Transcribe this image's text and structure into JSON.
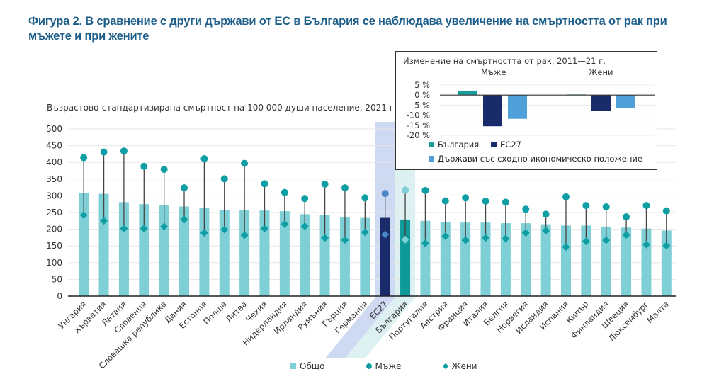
{
  "title": "Фигура 2. В сравнение с други държави от ЕС в България се наблюдава увеличение на смъртността от рак при мъжете и при жените",
  "chart_data": [
    {
      "type": "bar",
      "subtitle": "Възрастово-стандартизирана смъртност на 100 000 души население, 2021 г.",
      "xlabel": "",
      "ylabel": "",
      "ylim": [
        0,
        500
      ],
      "yticks": [
        "0",
        "50",
        "100",
        "150",
        "200",
        "250",
        "300",
        "350",
        "400",
        "450",
        "500"
      ],
      "grid": true,
      "legend_position": "bottom",
      "highlighted": [
        "ЕС27",
        "България"
      ],
      "categories": [
        "Унгария",
        "Хърватия",
        "Латвия",
        "Словения",
        "Словашка република",
        "Дания",
        "Естония",
        "Полша",
        "Литва",
        "Чехия",
        "Нидерландия",
        "Ирландия",
        "Румъния",
        "Гърция",
        "Германия",
        "ЕС27",
        "България",
        "Португалия",
        "Австрия",
        "Франция",
        "Италия",
        "Белгия",
        "Норвегия",
        "Исландия",
        "Испания",
        "Кипър",
        "Финландия",
        "Швеция",
        "Люксембург",
        "Малта"
      ],
      "series": [
        {
          "name": "Общо",
          "kind": "bar",
          "values": [
            308,
            306,
            281,
            275,
            273,
            268,
            263,
            257,
            257,
            256,
            254,
            245,
            242,
            236,
            234,
            234,
            229,
            225,
            222,
            220,
            220,
            218,
            218,
            215,
            211,
            211,
            208,
            205,
            202,
            196
          ]
        },
        {
          "name": "Мъже",
          "kind": "dot",
          "values": [
            414,
            431,
            434,
            388,
            379,
            324,
            411,
            351,
            397,
            336,
            310,
            292,
            335,
            324,
            294,
            307,
            317,
            316,
            285,
            294,
            284,
            281,
            260,
            245,
            297,
            271,
            267,
            237,
            271,
            255
          ]
        },
        {
          "name": "Жени",
          "kind": "diamond",
          "values": [
            242,
            225,
            202,
            202,
            208,
            229,
            189,
            199,
            182,
            202,
            215,
            209,
            174,
            168,
            191,
            184,
            169,
            158,
            179,
            167,
            174,
            172,
            189,
            196,
            147,
            164,
            167,
            183,
            154,
            151
          ]
        }
      ],
      "colors": {
        "bar": "#7fd0d6",
        "bar_eu": "#1a2b6b",
        "bar_bg": "#0f9a9a",
        "dot": "#0f9ea3",
        "dot_eu": "#4a86c8",
        "dot_bg": "#7fd0d6",
        "stem": "#444444",
        "highlight_eu": "#c5d3ee",
        "highlight_bg": "#d7eef0"
      }
    },
    {
      "type": "bar",
      "title": "Изменение на смъртността от рак, 2011—21 г.",
      "categories": [
        "Мъже",
        "Жени"
      ],
      "ylim": [
        -20,
        5
      ],
      "yticks": [
        "5 %",
        "0 %",
        "-5 %",
        "-10 %",
        "-15 %",
        "-20 %"
      ],
      "grid": true,
      "legend_position": "bottom-left",
      "series": [
        {
          "name": "България",
          "values": [
            2.2,
            0.3
          ],
          "color": "#1a9e9c"
        },
        {
          "name": "ЕС27",
          "values": [
            -15.5,
            -8.0
          ],
          "color": "#1a2b6b"
        },
        {
          "name": "Държави със сходно икономическо положение",
          "values": [
            -11.8,
            -6.3
          ],
          "color": "#4f9fd8"
        }
      ]
    }
  ]
}
